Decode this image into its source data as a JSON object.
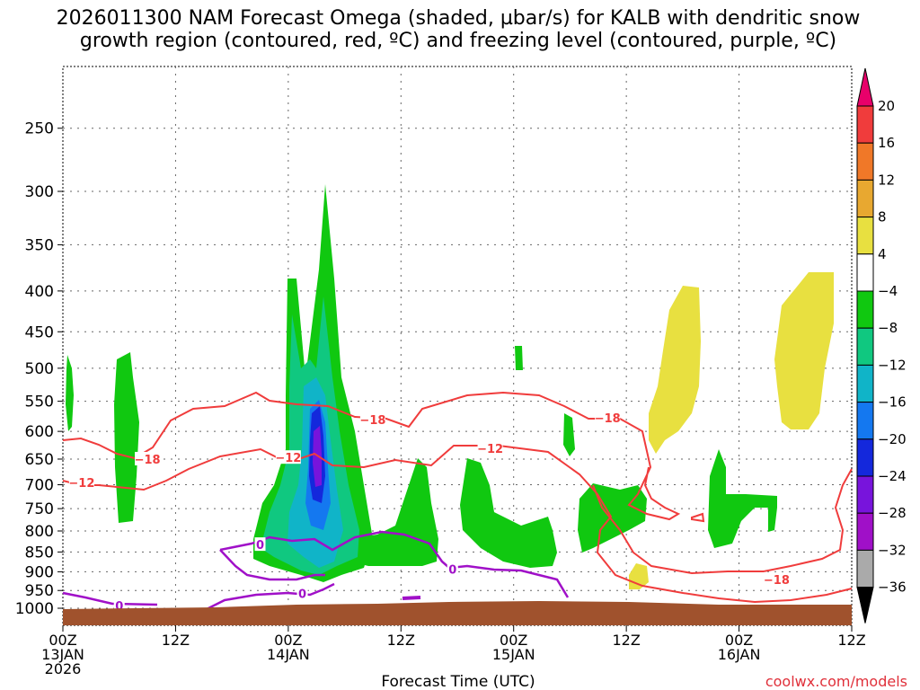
{
  "chart_data": {
    "type": "contour",
    "title_lines": [
      "2026011300 NAM Forecast Omega (shaded, µbar/s) for KALB with dendritic snow",
      "growth region (contoured, red, ºC) and freezing level (contoured, purple, ºC)"
    ],
    "xlabel": "Forecast Time (UTC)",
    "credit": "coolwx.com/models",
    "x_hours_range": [
      0,
      84
    ],
    "x_ticks": [
      {
        "hour": 0,
        "lines": [
          "00Z",
          "13JAN",
          "2026"
        ]
      },
      {
        "hour": 12,
        "lines": [
          "12Z"
        ]
      },
      {
        "hour": 24,
        "lines": [
          "00Z",
          "14JAN"
        ]
      },
      {
        "hour": 36,
        "lines": [
          "12Z"
        ]
      },
      {
        "hour": 48,
        "lines": [
          "00Z",
          "15JAN"
        ]
      },
      {
        "hour": 60,
        "lines": [
          "12Z"
        ]
      },
      {
        "hour": 72,
        "lines": [
          "00Z",
          "16JAN"
        ]
      },
      {
        "hour": 84,
        "lines": [
          "12Z"
        ]
      }
    ],
    "y_ticks_hpa": [
      250,
      300,
      350,
      400,
      450,
      500,
      550,
      600,
      650,
      700,
      750,
      800,
      850,
      900,
      950,
      1000
    ],
    "colorbar": {
      "labels": [
        "20",
        "16",
        "12",
        "8",
        "4",
        "−4",
        "−8",
        "−12",
        "−16",
        "−20",
        "−24",
        "−28",
        "−32",
        "−36"
      ],
      "colors": [
        "#e8006a",
        "#f03c3c",
        "#f07828",
        "#e8a830",
        "#e8e040",
        "#ffffff",
        "#10c810",
        "#10c880",
        "#10b4c8",
        "#1478f0",
        "#1428dc",
        "#7814dc",
        "#a010c8",
        "#aaaaaa",
        "#000000"
      ]
    },
    "contour_labels": [
      {
        "text": "−18",
        "hour": 9.0,
        "p": 650,
        "kind": "dgz"
      },
      {
        "text": "−12",
        "hour": 2.0,
        "p": 695,
        "kind": "dgz"
      },
      {
        "text": "−12",
        "hour": 24.0,
        "p": 647,
        "kind": "dgz"
      },
      {
        "text": "−18",
        "hour": 33.0,
        "p": 580,
        "kind": "dgz"
      },
      {
        "text": "−12",
        "hour": 45.5,
        "p": 630,
        "kind": "dgz"
      },
      {
        "text": "−18",
        "hour": 58.0,
        "p": 577,
        "kind": "dgz"
      },
      {
        "text": "−18",
        "hour": 76.0,
        "p": 920,
        "kind": "dgz"
      },
      {
        "text": "0",
        "hour": 6.0,
        "p": 992,
        "kind": "frz"
      },
      {
        "text": "0",
        "hour": 21.0,
        "p": 832,
        "kind": "frz"
      },
      {
        "text": "0",
        "hour": 25.5,
        "p": 958,
        "kind": "frz"
      },
      {
        "text": "0",
        "hour": 41.5,
        "p": 893,
        "kind": "frz"
      }
    ]
  }
}
